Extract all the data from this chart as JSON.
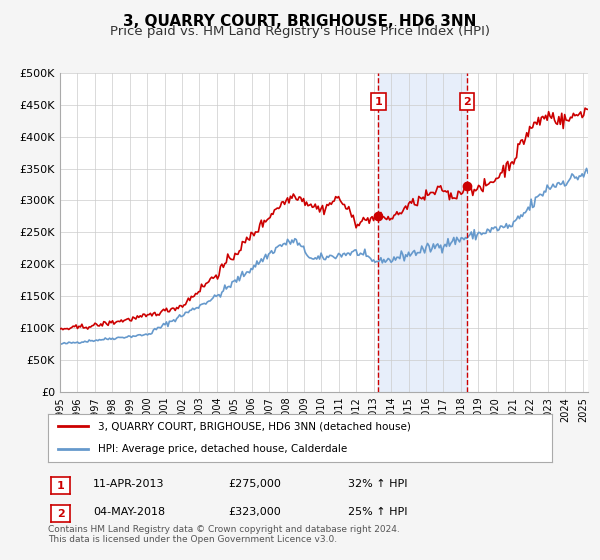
{
  "title": "3, QUARRY COURT, BRIGHOUSE, HD6 3NN",
  "subtitle": "Price paid vs. HM Land Registry's House Price Index (HPI)",
  "xlabel": "",
  "ylabel": "",
  "ylim": [
    0,
    500000
  ],
  "yticks": [
    0,
    50000,
    100000,
    150000,
    200000,
    250000,
    300000,
    350000,
    400000,
    450000,
    500000
  ],
  "ytick_labels": [
    "£0",
    "£50K",
    "£100K",
    "£150K",
    "£200K",
    "£250K",
    "£300K",
    "£350K",
    "£400K",
    "£450K",
    "£500K"
  ],
  "xlim_start": 1995.0,
  "xlim_end": 2025.3,
  "xtick_years": [
    1995,
    1996,
    1997,
    1998,
    1999,
    2000,
    2001,
    2002,
    2003,
    2004,
    2005,
    2006,
    2007,
    2008,
    2009,
    2010,
    2011,
    2012,
    2013,
    2014,
    2015,
    2016,
    2017,
    2018,
    2019,
    2020,
    2021,
    2022,
    2023,
    2024,
    2025
  ],
  "sale_color": "#cc0000",
  "hpi_color": "#6699cc",
  "background_color": "#f0f4ff",
  "plot_bg_color": "#ffffff",
  "grid_color": "#cccccc",
  "marker1_x": 2013.27,
  "marker1_y": 275000,
  "marker2_x": 2018.34,
  "marker2_y": 323000,
  "vline1_x": 2013.27,
  "vline2_x": 2018.34,
  "legend_sale_label": "3, QUARRY COURT, BRIGHOUSE, HD6 3NN (detached house)",
  "legend_hpi_label": "HPI: Average price, detached house, Calderdale",
  "annotation1_label": "1",
  "annotation2_label": "2",
  "info1_num": "1",
  "info1_date": "11-APR-2013",
  "info1_price": "£275,000",
  "info1_hpi": "32% ↑ HPI",
  "info2_num": "2",
  "info2_date": "04-MAY-2018",
  "info2_price": "£323,000",
  "info2_hpi": "25% ↑ HPI",
  "footer": "Contains HM Land Registry data © Crown copyright and database right 2024.\nThis data is licensed under the Open Government Licence v3.0.",
  "title_fontsize": 11,
  "subtitle_fontsize": 9.5
}
